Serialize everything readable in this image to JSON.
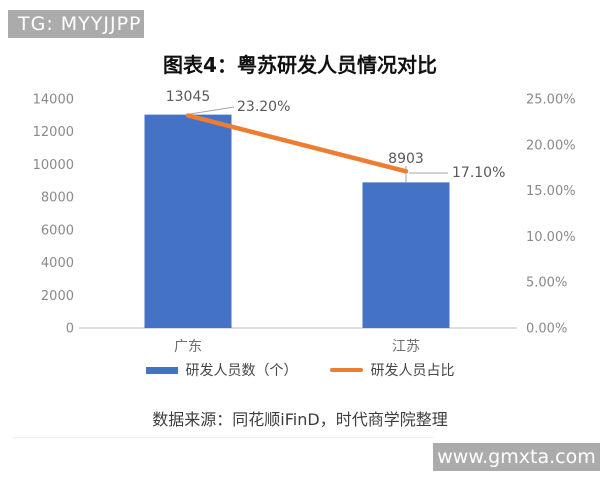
{
  "badge": {
    "text": "TG: MYYJJPP"
  },
  "title": "图表4：粤苏研发人员情况对比",
  "chart_data": {
    "type": "bar",
    "title": "图表4：粤苏研发人员情况对比",
    "categories": [
      "广东",
      "江苏"
    ],
    "series": [
      {
        "name": "研发人员数（个）",
        "type": "bar",
        "axis": "left",
        "color": "#4472C4",
        "values": [
          13045,
          8903
        ],
        "data_labels": [
          "13045",
          "8903"
        ]
      },
      {
        "name": "研发人员占比",
        "type": "line",
        "axis": "right",
        "color": "#ED7D31",
        "values": [
          23.2,
          17.1
        ],
        "data_labels": [
          "23.20%",
          "17.10%"
        ]
      }
    ],
    "left_axis": {
      "min": 0,
      "max": 14000,
      "step": 2000,
      "tick_labels": [
        "0",
        "2000",
        "4000",
        "6000",
        "8000",
        "10000",
        "12000",
        "14000"
      ]
    },
    "right_axis": {
      "min": 0,
      "max": 25,
      "step": 5,
      "tick_labels": [
        "0.00%",
        "5.00%",
        "10.00%",
        "15.00%",
        "20.00%",
        "25.00%"
      ]
    },
    "grid": false,
    "legend_position": "bottom"
  },
  "source_note": "数据来源：同花顺iFinD，时代商学院整理",
  "watermark": {
    "text": "www.gmxta.com"
  },
  "colors": {
    "bar": "#4472C4",
    "line": "#ED7D31",
    "axis_line": "#BFBFBF",
    "tick_text": "#8a8a8a",
    "category_text": "#6e6e6e",
    "data_label_text": "#595959",
    "leader_line": "#a6a6a6",
    "badge_bg": "#ABABAB",
    "watermark_bg": "#ABABAB"
  }
}
